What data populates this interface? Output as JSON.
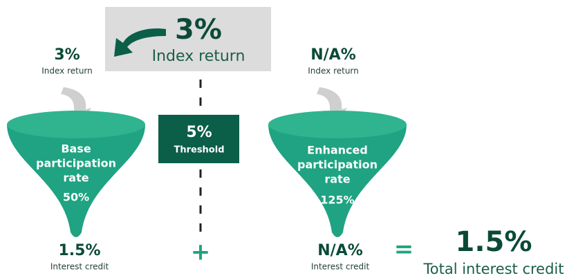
{
  "top": {
    "value": "3%",
    "label": "Index return"
  },
  "left": {
    "input_value": "3%",
    "input_label": "Index return",
    "funnel_lines": [
      "Base",
      "participation",
      "rate"
    ],
    "rate": "50%",
    "credit_value": "1.5%",
    "credit_label": "Interest credit"
  },
  "threshold": {
    "value": "5%",
    "label": "Threshold"
  },
  "plus": "+",
  "right": {
    "input_value": "N/A%",
    "input_label": "Index return",
    "funnel_lines": [
      "Enhanced",
      "participation",
      "rate"
    ],
    "rate": "125%",
    "credit_value": "N/A%",
    "credit_label": "Interest credit"
  },
  "equals": "=",
  "total": {
    "value": "1.5%",
    "label": "Total interest credit"
  }
}
